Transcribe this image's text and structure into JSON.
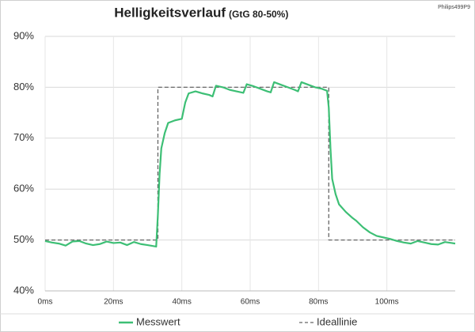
{
  "chart_data": {
    "type": "line",
    "title": "Helligkeitsverlauf",
    "subtitle": "(GtG 80-50%)",
    "annotation": "Philips499P9",
    "xlim": [
      0,
      120
    ],
    "ylim": [
      40,
      90
    ],
    "xticks": [
      {
        "value": 0,
        "label": "0ms"
      },
      {
        "value": 20,
        "label": "20ms"
      },
      {
        "value": 40,
        "label": "40ms"
      },
      {
        "value": 60,
        "label": "60ms"
      },
      {
        "value": 80,
        "label": "80ms"
      },
      {
        "value": 100,
        "label": "100ms"
      }
    ],
    "yticks": [
      {
        "value": 40,
        "label": "40%"
      },
      {
        "value": 50,
        "label": "50%"
      },
      {
        "value": 60,
        "label": "60%"
      },
      {
        "value": 70,
        "label": "70%"
      },
      {
        "value": 80,
        "label": "80%"
      },
      {
        "value": 90,
        "label": "90%"
      }
    ],
    "grid": true,
    "legend": "bottom",
    "series": [
      {
        "name": "Messwert",
        "color": "#3dbf75",
        "line_style": "solid",
        "x": [
          0,
          2,
          4,
          6,
          8,
          10,
          12,
          14,
          16,
          18,
          20,
          22,
          24,
          26,
          28,
          30,
          32.5,
          33,
          33.5,
          34,
          35,
          36,
          38,
          40,
          41,
          42,
          44,
          46,
          48,
          49,
          50,
          52,
          54,
          56,
          58,
          59,
          61,
          63,
          65,
          66,
          67,
          69,
          71,
          73,
          74,
          75,
          77,
          79,
          81,
          82.5,
          83,
          83.5,
          84,
          85,
          86,
          88,
          90,
          91,
          93,
          95,
          97,
          99,
          101,
          103,
          105,
          107,
          109,
          111,
          113,
          115,
          117,
          119,
          120
        ],
        "values": [
          49.8,
          49.5,
          49.3,
          48.9,
          49.7,
          49.8,
          49.3,
          49.0,
          49.2,
          49.7,
          49.4,
          49.5,
          49.0,
          49.6,
          49.2,
          49.0,
          48.7,
          55,
          63,
          68,
          71,
          73,
          73.5,
          73.8,
          77,
          78.8,
          79.2,
          78.8,
          78.5,
          78.2,
          80.3,
          80,
          79.5,
          79.2,
          78.9,
          80.6,
          80.2,
          79.7,
          79.2,
          79,
          81,
          80.5,
          80,
          79.5,
          79.2,
          81,
          80.5,
          80,
          79.7,
          79.3,
          76,
          68,
          62,
          59,
          57,
          55.5,
          54.3,
          53.8,
          52.5,
          51.5,
          50.8,
          50.5,
          50.2,
          49.8,
          49.5,
          49.3,
          49.8,
          49.5,
          49.2,
          49.1,
          49.6,
          49.4,
          49.3
        ]
      },
      {
        "name": "Ideallinie",
        "color": "#666666",
        "line_style": "dashed",
        "x": [
          0,
          33,
          33,
          83,
          83,
          120
        ],
        "values": [
          50,
          50,
          80,
          80,
          50,
          50
        ]
      }
    ]
  }
}
